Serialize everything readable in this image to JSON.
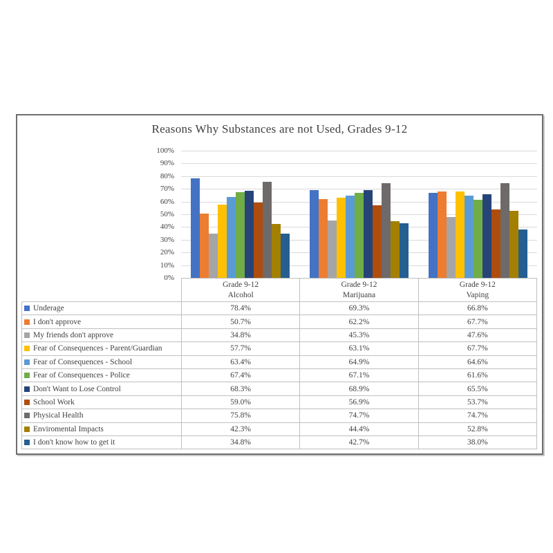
{
  "chart_data": {
    "type": "bar",
    "title": "Reasons Why Substances are not Used, Grades 9-12",
    "category_header": "Grade 9-12",
    "category_sublabels": [
      "Alcohol",
      "Marijuana",
      "Vaping"
    ],
    "categories": [
      "Grade 9-12 Alcohol",
      "Grade 9-12 Marijuana",
      "Grade 9-12 Vaping"
    ],
    "yticks": [
      0,
      10,
      20,
      30,
      40,
      50,
      60,
      70,
      80,
      90,
      100
    ],
    "ytick_suffix": "%",
    "ylim": [
      0,
      100
    ],
    "grid": true,
    "legend_position": "left-column-of-data-table",
    "value_suffix": "%",
    "value_decimals": 1,
    "series": [
      {
        "name": "Underage",
        "color": "#4472C4",
        "values": [
          78.4,
          69.3,
          66.8
        ]
      },
      {
        "name": "I don't approve",
        "color": "#ED7D31",
        "values": [
          50.7,
          62.2,
          67.7
        ]
      },
      {
        "name": "My friends don't approve",
        "color": "#A5A5A5",
        "values": [
          34.8,
          45.3,
          47.6
        ]
      },
      {
        "name": "Fear of Consequences - Parent/Guardian",
        "color": "#FFC000",
        "values": [
          57.7,
          63.1,
          67.7
        ]
      },
      {
        "name": "Fear of Consequences - School",
        "color": "#5B9BD5",
        "values": [
          63.4,
          64.9,
          64.6
        ]
      },
      {
        "name": "Fear of Consequences - Police",
        "color": "#70AD47",
        "values": [
          67.4,
          67.1,
          61.6
        ]
      },
      {
        "name": "Don't Want to Lose Control",
        "color": "#264478",
        "values": [
          68.3,
          68.9,
          65.5
        ]
      },
      {
        "name": "School Work",
        "color": "#AE4D0E",
        "values": [
          59.0,
          56.9,
          53.7
        ]
      },
      {
        "name": "Physical Health",
        "color": "#6E6A6A",
        "values": [
          75.8,
          74.7,
          74.7
        ]
      },
      {
        "name": "Enviromental Impacts",
        "color": "#A38000",
        "values": [
          42.3,
          44.4,
          52.8
        ]
      },
      {
        "name": "I don't know how to get it",
        "color": "#255E91",
        "values": [
          34.8,
          42.7,
          38.0
        ]
      }
    ]
  }
}
